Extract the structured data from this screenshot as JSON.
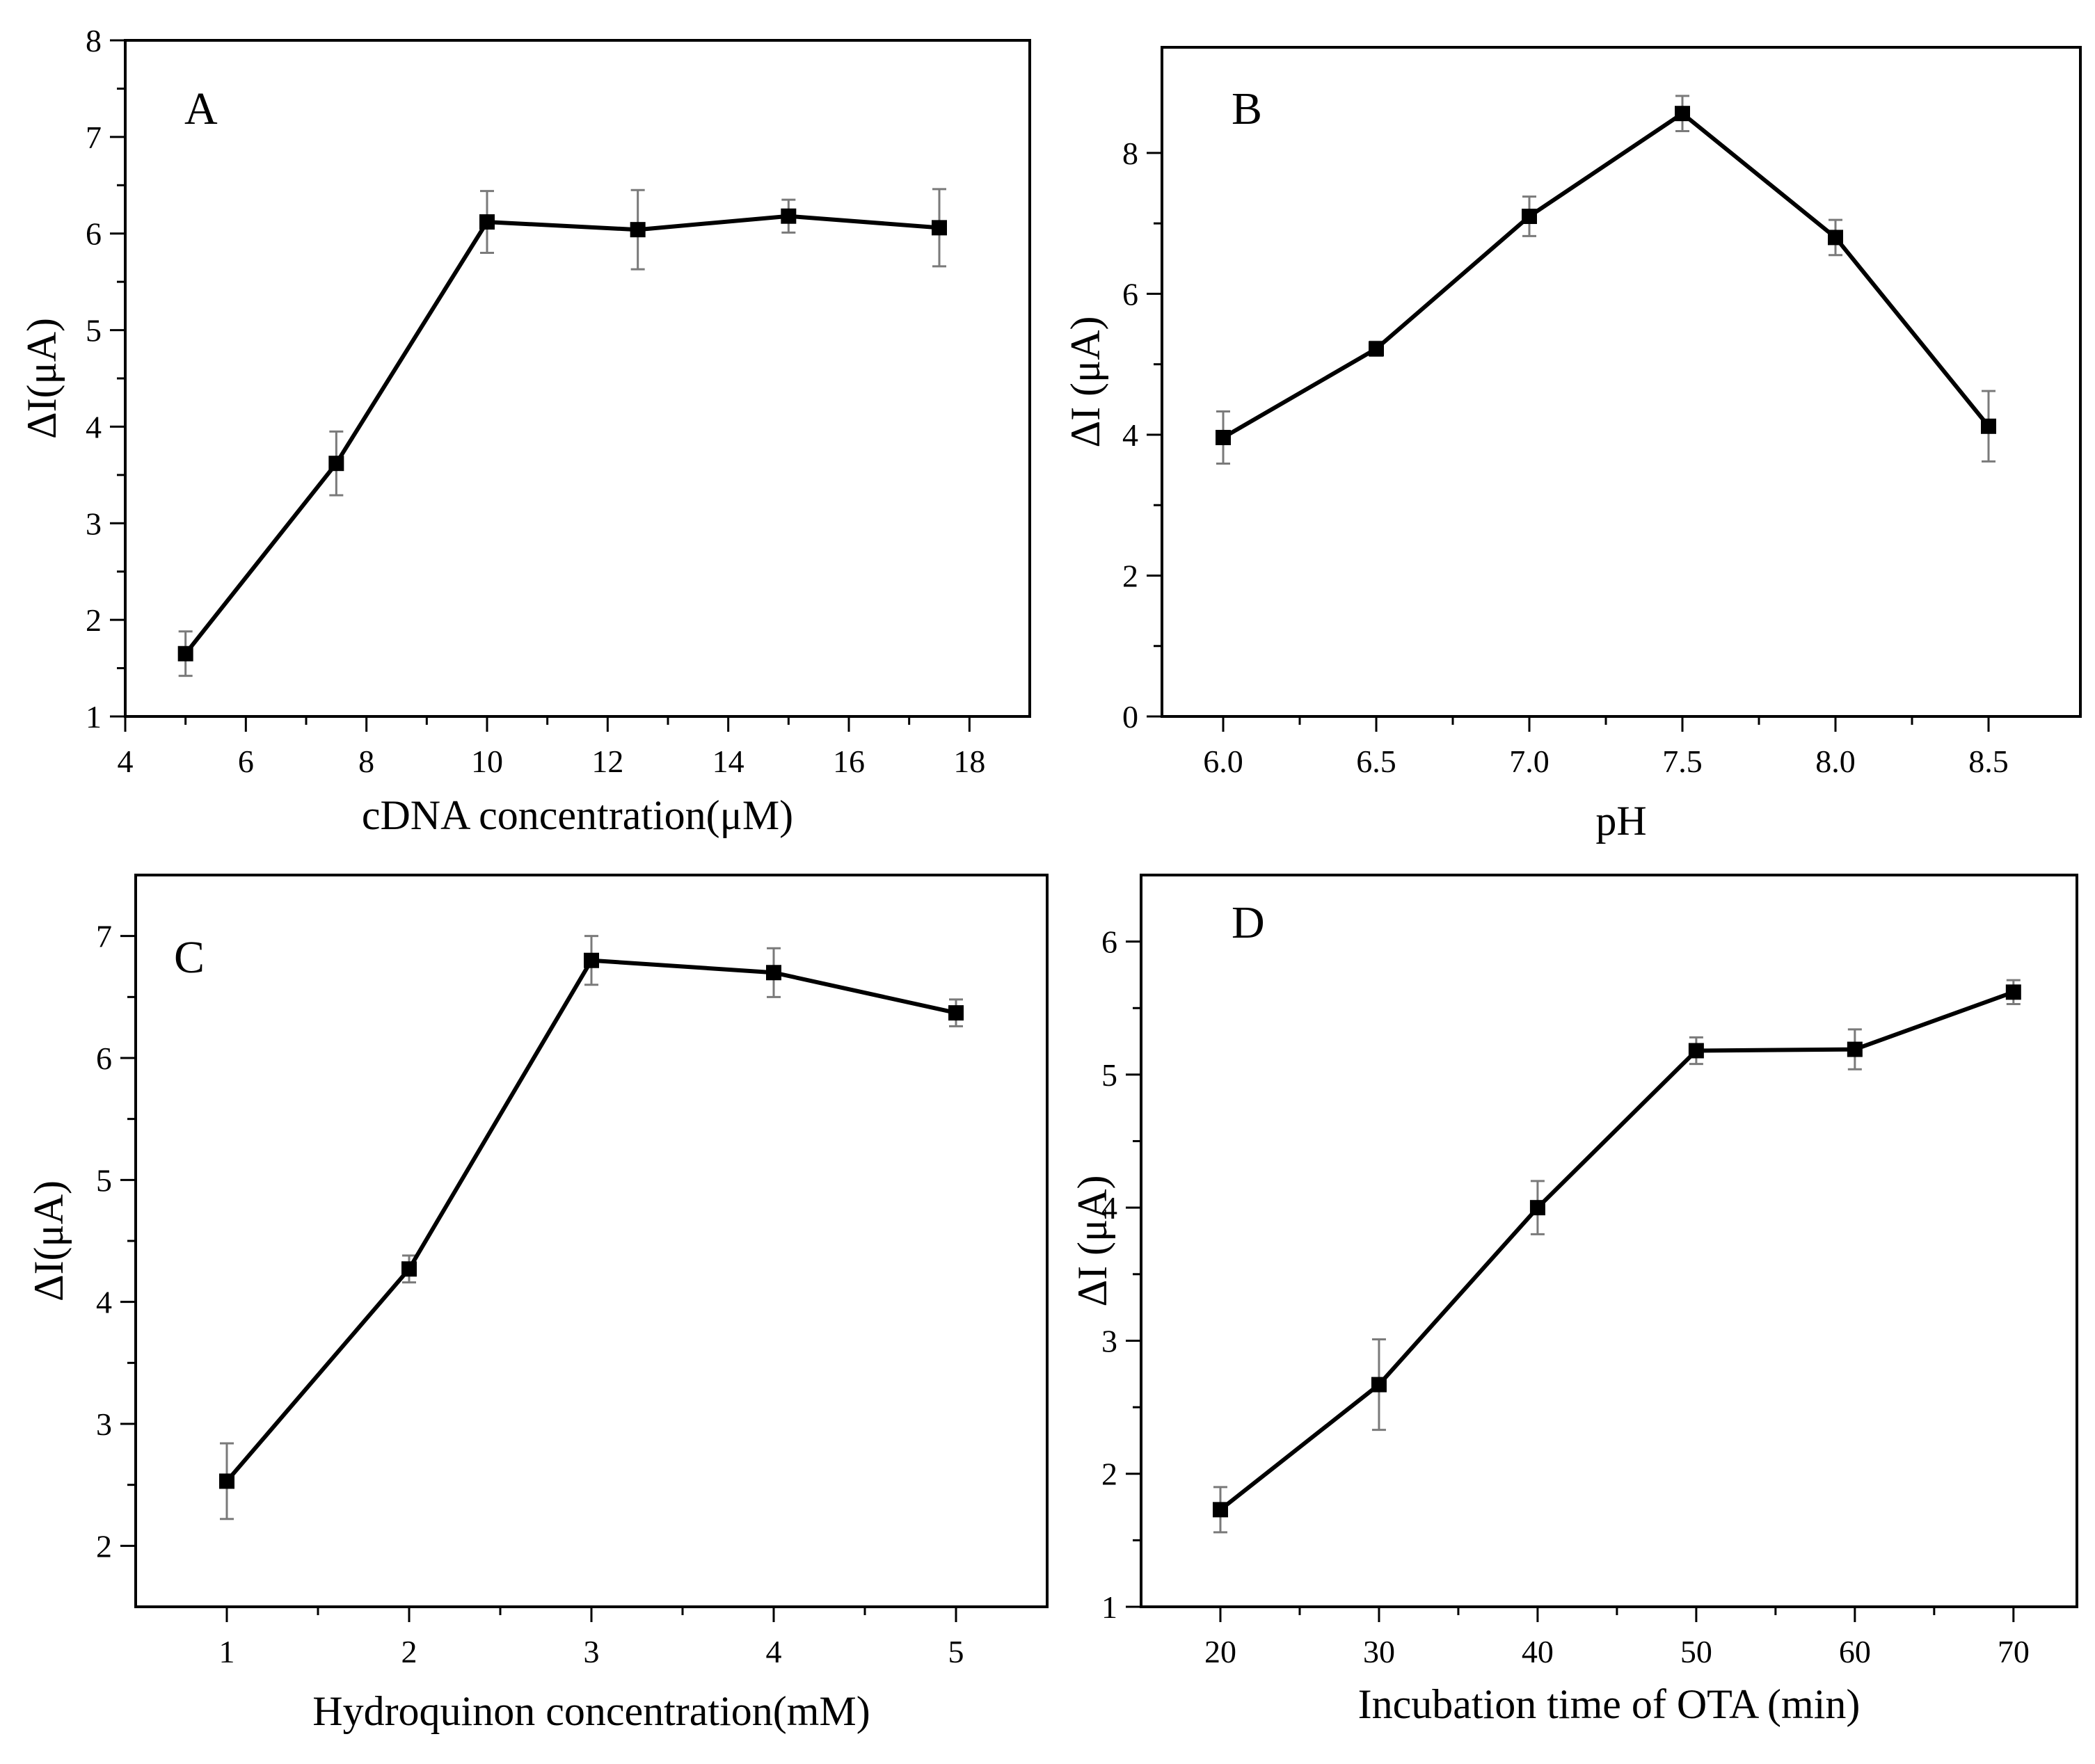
{
  "figure": {
    "colors": {
      "line": "#000000",
      "error_bar": "#7a7a7a",
      "marker": "#000000"
    }
  },
  "chart_data": [
    {
      "id": "A",
      "type": "line",
      "panel_label": "A",
      "title": "",
      "xlabel": "cDNA concentration(μM)",
      "ylabel": "ΔI(μA)",
      "xlim": [
        4,
        19
      ],
      "ylim": [
        1,
        8
      ],
      "xticks": [
        4,
        6,
        8,
        10,
        12,
        14,
        16,
        18
      ],
      "yticks": [
        1,
        2,
        3,
        4,
        5,
        6,
        7,
        8
      ],
      "tick_labels_x": [
        "4",
        "6",
        "8",
        "10",
        "12",
        "14",
        "16",
        "18"
      ],
      "tick_labels_y": [
        "1",
        "2",
        "3",
        "4",
        "5",
        "6",
        "7",
        "8"
      ],
      "x": [
        5,
        7.5,
        10,
        12.5,
        15,
        17.5
      ],
      "y": [
        1.65,
        3.62,
        6.12,
        6.04,
        6.18,
        6.06
      ],
      "error": [
        0.23,
        0.33,
        0.32,
        0.41,
        0.17,
        0.4
      ],
      "grid": false,
      "legend": "none"
    },
    {
      "id": "B",
      "type": "line",
      "panel_label": "B",
      "title": "",
      "xlabel": "pH",
      "ylabel": "ΔI (μA)",
      "xlim": [
        5.8,
        8.8
      ],
      "ylim": [
        0,
        9.5
      ],
      "xticks": [
        6.0,
        6.5,
        7.0,
        7.5,
        8.0,
        8.5
      ],
      "yticks": [
        0,
        2,
        4,
        6,
        8
      ],
      "tick_labels_x": [
        "6.0",
        "6.5",
        "7.0",
        "7.5",
        "8.0",
        "8.5"
      ],
      "tick_labels_y": [
        "0",
        "2",
        "4",
        "6",
        "8"
      ],
      "x": [
        6.0,
        6.5,
        7.0,
        7.5,
        8.0,
        8.5
      ],
      "y": [
        3.96,
        5.22,
        7.1,
        8.56,
        6.8,
        4.12
      ],
      "error": [
        0.37,
        0.1,
        0.28,
        0.25,
        0.25,
        0.5
      ],
      "grid": false,
      "legend": "none"
    },
    {
      "id": "C",
      "type": "line",
      "panel_label": "C",
      "title": "",
      "xlabel": "Hydroquinon concentration(mM)",
      "ylabel": "ΔI(μA)",
      "xlim": [
        0.5,
        5.5
      ],
      "ylim": [
        1.5,
        7.5
      ],
      "xticks": [
        1,
        2,
        3,
        4,
        5
      ],
      "yticks": [
        2,
        3,
        4,
        5,
        6,
        7
      ],
      "tick_labels_x": [
        "1",
        "2",
        "3",
        "4",
        "5"
      ],
      "tick_labels_y": [
        "2",
        "3",
        "4",
        "5",
        "6",
        "7"
      ],
      "x": [
        1,
        2,
        3,
        4,
        5
      ],
      "y": [
        2.53,
        4.27,
        6.8,
        6.7,
        6.37
      ],
      "error": [
        0.31,
        0.11,
        0.2,
        0.2,
        0.11
      ],
      "grid": false,
      "legend": "none"
    },
    {
      "id": "D",
      "type": "line",
      "panel_label": "D",
      "title": "",
      "xlabel": "Incubation time of OTA (min)",
      "ylabel": "ΔI (μA)",
      "xlim": [
        15,
        74
      ],
      "ylim": [
        1,
        6.5
      ],
      "xticks": [
        20,
        30,
        40,
        50,
        60,
        70
      ],
      "yticks": [
        1,
        2,
        3,
        4,
        5,
        6
      ],
      "tick_labels_x": [
        "20",
        "30",
        "40",
        "50",
        "60",
        "70"
      ],
      "tick_labels_y": [
        "1",
        "2",
        "3",
        "4",
        "5",
        "6"
      ],
      "x": [
        20,
        30,
        40,
        50,
        60,
        70
      ],
      "y": [
        1.73,
        2.67,
        4.0,
        5.18,
        5.19,
        5.62
      ],
      "error": [
        0.17,
        0.34,
        0.2,
        0.1,
        0.15,
        0.09
      ],
      "grid": false,
      "legend": "none"
    }
  ]
}
